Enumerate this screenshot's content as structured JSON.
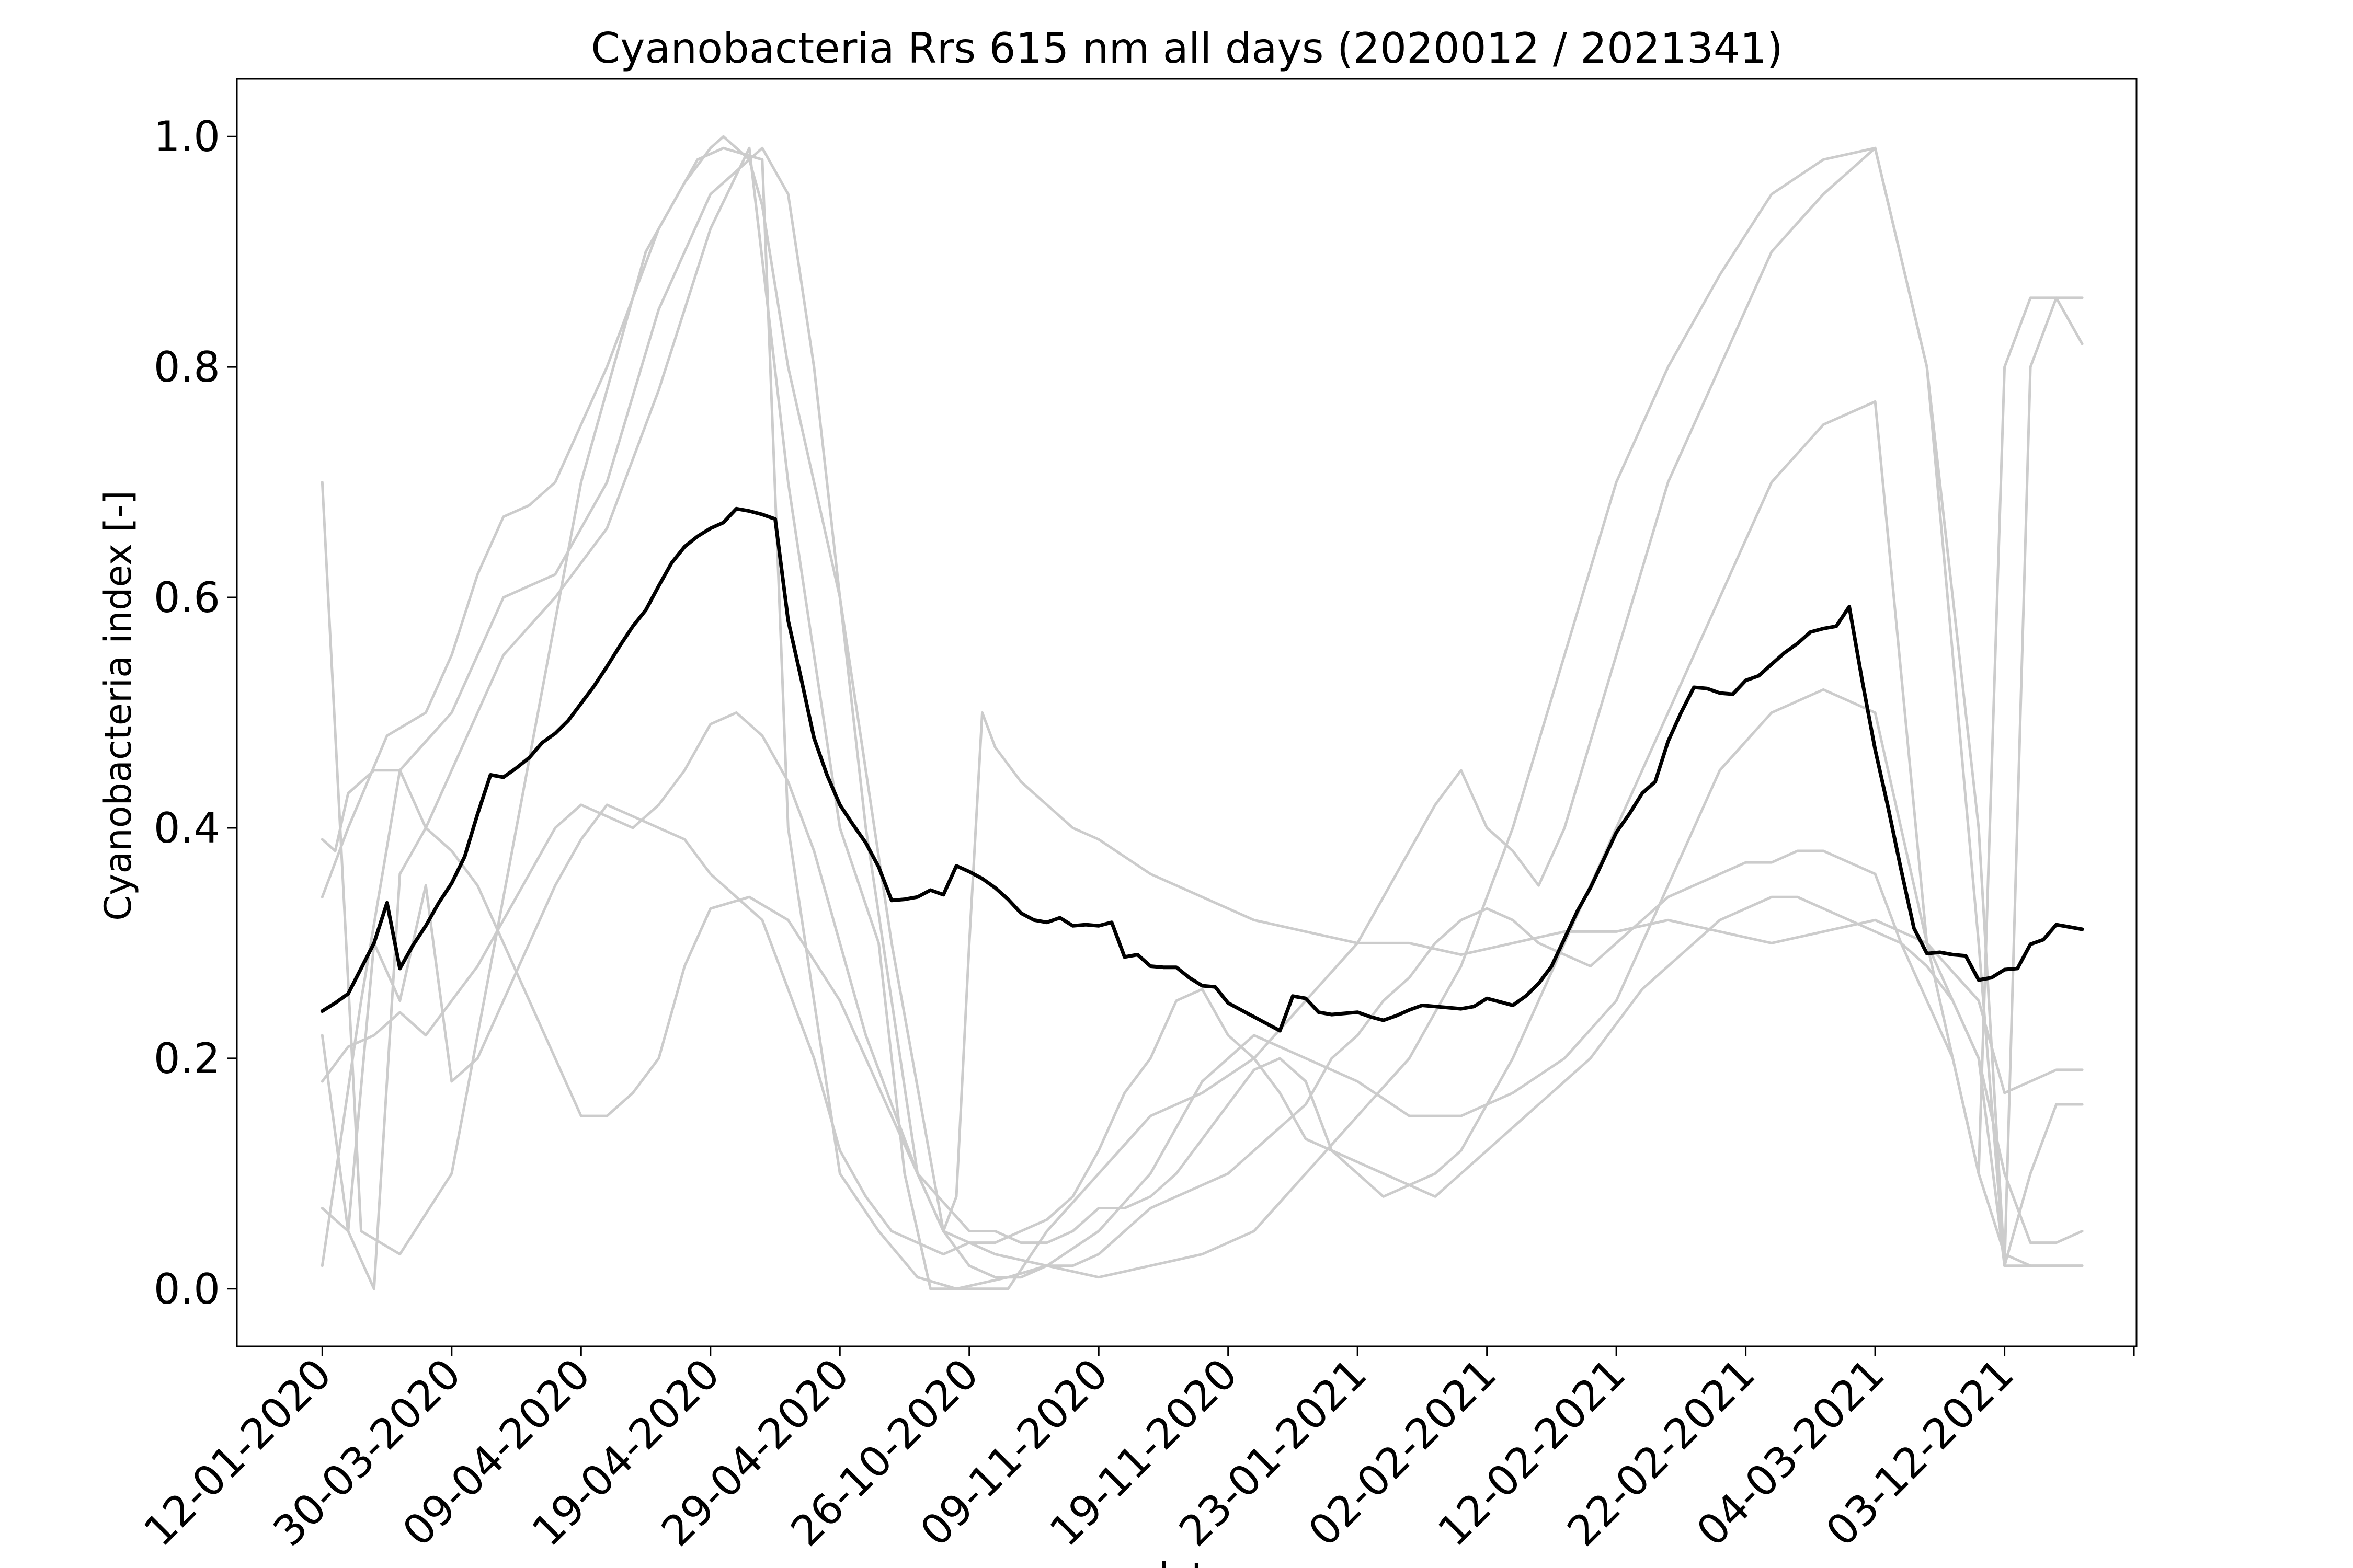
{
  "chart_data": {
    "type": "line",
    "title": "Cyanobacteria Rrs 615 nm all days (2020012 / 2021341)",
    "ylabel": "Cyanobacteria index [-]",
    "xlabel": "date",
    "x_tick_labels": [
      "12-01-2020",
      "30-03-2020",
      "09-04-2020",
      "19-04-2020",
      "29-04-2020",
      "26-10-2020",
      "09-11-2020",
      "19-11-2020",
      "23-01-2021",
      "02-02-2021",
      "12-02-2021",
      "22-02-2021",
      "04-03-2021",
      "03-12-2021"
    ],
    "x_tick_positions": [
      0,
      10,
      20,
      30,
      40,
      50,
      60,
      70,
      80,
      90,
      100,
      110,
      120,
      130
    ],
    "y_ticks": [
      0.0,
      0.2,
      0.4,
      0.6,
      0.8,
      1.0
    ],
    "y_tick_labels": [
      "0.0",
      "0.2",
      "0.4",
      "0.6",
      "0.8",
      "1.0"
    ],
    "xlim": [
      -6.6,
      140.2
    ],
    "ylim": [
      -0.05,
      1.05
    ],
    "grid": false,
    "colors": {
      "individual": "#cccccc",
      "mean": "#000000"
    },
    "series": [
      {
        "role": "individual",
        "x": [
          0,
          3,
          6,
          10,
          15,
          20,
          25,
          29,
          31,
          34,
          36,
          40,
          43,
          46,
          49,
          53,
          56,
          60,
          64,
          68,
          72,
          76,
          80,
          84,
          88,
          92,
          96,
          100,
          104,
          108,
          112,
          116,
          120,
          124,
          128,
          130,
          132,
          134,
          136
        ],
        "values": [
          0.7,
          0.05,
          0.03,
          0.1,
          0.4,
          0.7,
          0.9,
          0.98,
          0.99,
          0.98,
          0.4,
          0.1,
          0.05,
          0.01,
          0.0,
          0.01,
          0.02,
          0.05,
          0.1,
          0.18,
          0.22,
          0.2,
          0.18,
          0.15,
          0.15,
          0.17,
          0.2,
          0.25,
          0.35,
          0.45,
          0.5,
          0.52,
          0.5,
          0.3,
          0.2,
          0.02,
          0.1,
          0.16,
          0.16
        ]
      },
      {
        "role": "individual",
        "x": [
          0,
          2,
          5,
          8,
          10,
          12,
          14,
          16,
          18,
          20,
          22,
          24,
          26,
          28,
          30,
          31,
          32,
          33,
          34,
          36,
          40,
          44,
          48,
          52,
          56,
          60,
          64,
          68,
          72,
          76,
          80,
          84,
          88,
          92,
          96,
          100,
          104,
          108,
          112,
          116,
          120,
          124,
          128,
          130,
          132,
          134,
          136
        ],
        "values": [
          0.34,
          0.4,
          0.48,
          0.5,
          0.55,
          0.62,
          0.67,
          0.68,
          0.7,
          0.75,
          0.8,
          0.86,
          0.92,
          0.96,
          0.99,
          1.0,
          0.99,
          0.98,
          0.94,
          0.8,
          0.6,
          0.3,
          0.05,
          0.03,
          0.02,
          0.01,
          0.02,
          0.03,
          0.05,
          0.1,
          0.15,
          0.2,
          0.28,
          0.4,
          0.55,
          0.7,
          0.8,
          0.88,
          0.95,
          0.98,
          0.99,
          0.8,
          0.3,
          0.02,
          0.8,
          0.86,
          0.82
        ]
      },
      {
        "role": "individual",
        "x": [
          0,
          3,
          6,
          10,
          14,
          18,
          22,
          26,
          30,
          34,
          36,
          38,
          42,
          46,
          50,
          52,
          54,
          56,
          58,
          60,
          62,
          64,
          66,
          68,
          70,
          72,
          74,
          76,
          78,
          80,
          82,
          84,
          86,
          88,
          92,
          96,
          100,
          104,
          108,
          112,
          116,
          120,
          124,
          128,
          130,
          132,
          134,
          136
        ],
        "values": [
          0.02,
          0.25,
          0.45,
          0.5,
          0.6,
          0.62,
          0.7,
          0.85,
          0.95,
          0.99,
          0.95,
          0.8,
          0.4,
          0.1,
          0.05,
          0.05,
          0.04,
          0.04,
          0.05,
          0.07,
          0.07,
          0.08,
          0.1,
          0.13,
          0.16,
          0.19,
          0.2,
          0.18,
          0.12,
          0.1,
          0.08,
          0.09,
          0.1,
          0.12,
          0.2,
          0.3,
          0.4,
          0.5,
          0.6,
          0.7,
          0.75,
          0.77,
          0.3,
          0.1,
          0.8,
          0.86,
          0.86,
          0.86
        ]
      },
      {
        "role": "individual",
        "x": [
          0,
          2,
          4,
          6,
          8,
          10,
          14,
          18,
          22,
          26,
          30,
          33,
          36,
          40,
          43,
          45,
          47,
          50,
          53,
          56,
          60,
          64,
          68,
          72,
          76,
          80,
          84,
          86,
          88,
          90,
          92,
          94,
          96,
          100,
          104,
          108,
          112,
          116,
          120,
          124,
          128,
          130,
          132,
          134,
          136
        ],
        "values": [
          0.22,
          0.05,
          0.0,
          0.36,
          0.4,
          0.45,
          0.55,
          0.6,
          0.66,
          0.78,
          0.92,
          0.99,
          0.7,
          0.4,
          0.3,
          0.1,
          0.0,
          0.0,
          0.0,
          0.05,
          0.1,
          0.15,
          0.17,
          0.2,
          0.25,
          0.3,
          0.38,
          0.42,
          0.45,
          0.4,
          0.38,
          0.35,
          0.4,
          0.55,
          0.7,
          0.8,
          0.9,
          0.95,
          0.99,
          0.8,
          0.4,
          0.02,
          0.02,
          0.02,
          0.02
        ]
      },
      {
        "role": "individual",
        "x": [
          0,
          1,
          2,
          4,
          6,
          8,
          10,
          12,
          14,
          16,
          18,
          20,
          22,
          24,
          26,
          28,
          30,
          33,
          36,
          40,
          44,
          48,
          49,
          50,
          51,
          52,
          54,
          56,
          58,
          60,
          64,
          68,
          72,
          76,
          80,
          84,
          88,
          92,
          96,
          100,
          104,
          108,
          112,
          116,
          120,
          124,
          128,
          130,
          132,
          134,
          136
        ],
        "values": [
          0.39,
          0.38,
          0.43,
          0.45,
          0.45,
          0.4,
          0.38,
          0.35,
          0.3,
          0.25,
          0.2,
          0.15,
          0.15,
          0.17,
          0.2,
          0.28,
          0.33,
          0.34,
          0.32,
          0.25,
          0.15,
          0.05,
          0.08,
          0.3,
          0.5,
          0.47,
          0.44,
          0.42,
          0.4,
          0.39,
          0.36,
          0.34,
          0.32,
          0.31,
          0.3,
          0.3,
          0.29,
          0.3,
          0.31,
          0.31,
          0.32,
          0.31,
          0.3,
          0.31,
          0.32,
          0.3,
          0.25,
          0.17,
          0.18,
          0.19,
          0.19
        ]
      },
      {
        "role": "individual",
        "x": [
          0,
          2,
          4,
          6,
          8,
          10,
          12,
          14,
          16,
          18,
          20,
          22,
          24,
          26,
          28,
          30,
          32,
          34,
          36,
          38,
          40,
          42,
          44,
          46,
          48,
          50,
          52,
          54,
          56,
          58,
          60,
          62,
          64,
          66,
          68,
          70,
          72,
          74,
          76,
          78,
          80,
          82,
          84,
          86,
          88,
          90,
          92,
          94,
          96,
          98,
          100,
          102,
          104,
          106,
          108,
          110,
          112,
          114,
          116,
          118,
          120,
          122,
          124,
          126,
          128,
          130,
          132,
          134,
          136
        ],
        "values": [
          0.07,
          0.05,
          0.3,
          0.25,
          0.35,
          0.18,
          0.2,
          0.25,
          0.3,
          0.35,
          0.39,
          0.42,
          0.41,
          0.4,
          0.39,
          0.36,
          0.34,
          0.32,
          0.26,
          0.2,
          0.12,
          0.08,
          0.05,
          0.04,
          0.03,
          0.04,
          0.04,
          0.05,
          0.06,
          0.08,
          0.12,
          0.17,
          0.2,
          0.25,
          0.26,
          0.22,
          0.2,
          0.17,
          0.13,
          0.12,
          0.11,
          0.1,
          0.09,
          0.08,
          0.1,
          0.12,
          0.14,
          0.16,
          0.18,
          0.2,
          0.23,
          0.26,
          0.28,
          0.3,
          0.32,
          0.33,
          0.34,
          0.34,
          0.33,
          0.32,
          0.31,
          0.3,
          0.28,
          0.25,
          0.2,
          0.1,
          0.04,
          0.04,
          0.05
        ]
      },
      {
        "role": "individual",
        "x": [
          0,
          2,
          4,
          6,
          8,
          10,
          12,
          14,
          16,
          18,
          20,
          22,
          24,
          26,
          28,
          30,
          32,
          34,
          36,
          38,
          40,
          42,
          44,
          46,
          48,
          50,
          52,
          54,
          56,
          58,
          60,
          62,
          64,
          66,
          68,
          70,
          72,
          74,
          76,
          78,
          80,
          82,
          84,
          86,
          88,
          90,
          92,
          94,
          96,
          98,
          100,
          102,
          104,
          106,
          108,
          110,
          112,
          114,
          116,
          118,
          120,
          122,
          124,
          126,
          128,
          130,
          132,
          134,
          136
        ],
        "values": [
          0.18,
          0.21,
          0.22,
          0.24,
          0.22,
          0.25,
          0.28,
          0.32,
          0.36,
          0.4,
          0.42,
          0.41,
          0.4,
          0.42,
          0.45,
          0.49,
          0.5,
          0.48,
          0.44,
          0.38,
          0.3,
          0.22,
          0.16,
          0.1,
          0.05,
          0.02,
          0.01,
          0.01,
          0.02,
          0.02,
          0.03,
          0.05,
          0.07,
          0.08,
          0.09,
          0.1,
          0.12,
          0.14,
          0.16,
          0.2,
          0.22,
          0.25,
          0.27,
          0.3,
          0.32,
          0.33,
          0.32,
          0.3,
          0.29,
          0.28,
          0.3,
          0.32,
          0.34,
          0.35,
          0.36,
          0.37,
          0.37,
          0.38,
          0.38,
          0.37,
          0.36,
          0.3,
          0.25,
          0.2,
          0.1,
          0.03,
          0.02,
          0.02,
          0.02
        ]
      },
      {
        "role": "mean",
        "x": [
          0,
          1,
          2,
          3,
          4,
          5,
          6,
          7,
          8,
          9,
          10,
          11,
          12,
          13,
          14,
          15,
          16,
          17,
          18,
          19,
          20,
          21,
          22,
          23,
          24,
          25,
          26,
          27,
          28,
          29,
          30,
          31,
          32,
          33,
          34,
          35,
          36,
          37,
          38,
          39,
          40,
          41,
          42,
          43,
          44,
          45,
          46,
          47,
          48,
          49,
          50,
          51,
          52,
          53,
          54,
          55,
          56,
          57,
          58,
          59,
          60,
          61,
          62,
          63,
          64,
          65,
          66,
          67,
          68,
          69,
          70,
          71,
          72,
          73,
          74,
          75,
          76,
          77,
          78,
          79,
          80,
          81,
          82,
          83,
          84,
          85,
          86,
          87,
          88,
          89,
          90,
          91,
          92,
          93,
          94,
          95,
          96,
          97,
          98,
          99,
          100,
          101,
          102,
          103,
          104,
          105,
          106,
          107,
          108,
          109,
          110,
          111,
          112,
          113,
          114,
          115,
          116,
          117,
          118,
          119,
          120,
          121,
          122,
          123,
          124,
          125,
          126,
          127,
          128,
          129,
          130,
          131,
          132,
          133,
          134,
          135,
          136
        ],
        "values": [
          0.241,
          0.248,
          0.256,
          0.278,
          0.3,
          0.335,
          0.278,
          0.298,
          0.315,
          0.335,
          0.352,
          0.375,
          0.412,
          0.446,
          0.444,
          0.452,
          0.461,
          0.474,
          0.482,
          0.493,
          0.508,
          0.523,
          0.54,
          0.558,
          0.575,
          0.589,
          0.61,
          0.63,
          0.644,
          0.653,
          0.66,
          0.665,
          0.677,
          0.675,
          0.672,
          0.668,
          0.58,
          0.53,
          0.478,
          0.446,
          0.42,
          0.403,
          0.387,
          0.366,
          0.337,
          0.338,
          0.34,
          0.346,
          0.342,
          0.367,
          0.362,
          0.356,
          0.348,
          0.338,
          0.326,
          0.32,
          0.318,
          0.322,
          0.315,
          0.316,
          0.315,
          0.318,
          0.288,
          0.29,
          0.28,
          0.279,
          0.279,
          0.27,
          0.263,
          0.262,
          0.248,
          0.242,
          0.236,
          0.23,
          0.224,
          0.254,
          0.252,
          0.24,
          0.238,
          0.239,
          0.24,
          0.236,
          0.233,
          0.237,
          0.242,
          0.246,
          0.245,
          0.244,
          0.243,
          0.245,
          0.252,
          0.249,
          0.246,
          0.254,
          0.265,
          0.28,
          0.304,
          0.328,
          0.348,
          0.372,
          0.396,
          0.412,
          0.43,
          0.44,
          0.475,
          0.5,
          0.522,
          0.521,
          0.517,
          0.516,
          0.528,
          0.532,
          0.542,
          0.552,
          0.56,
          0.57,
          0.573,
          0.575,
          0.592,
          0.528,
          0.468,
          0.418,
          0.364,
          0.313,
          0.291,
          0.292,
          0.29,
          0.289,
          0.268,
          0.27,
          0.277,
          0.278,
          0.299,
          0.303,
          0.316,
          0.314,
          0.312
        ]
      }
    ]
  }
}
